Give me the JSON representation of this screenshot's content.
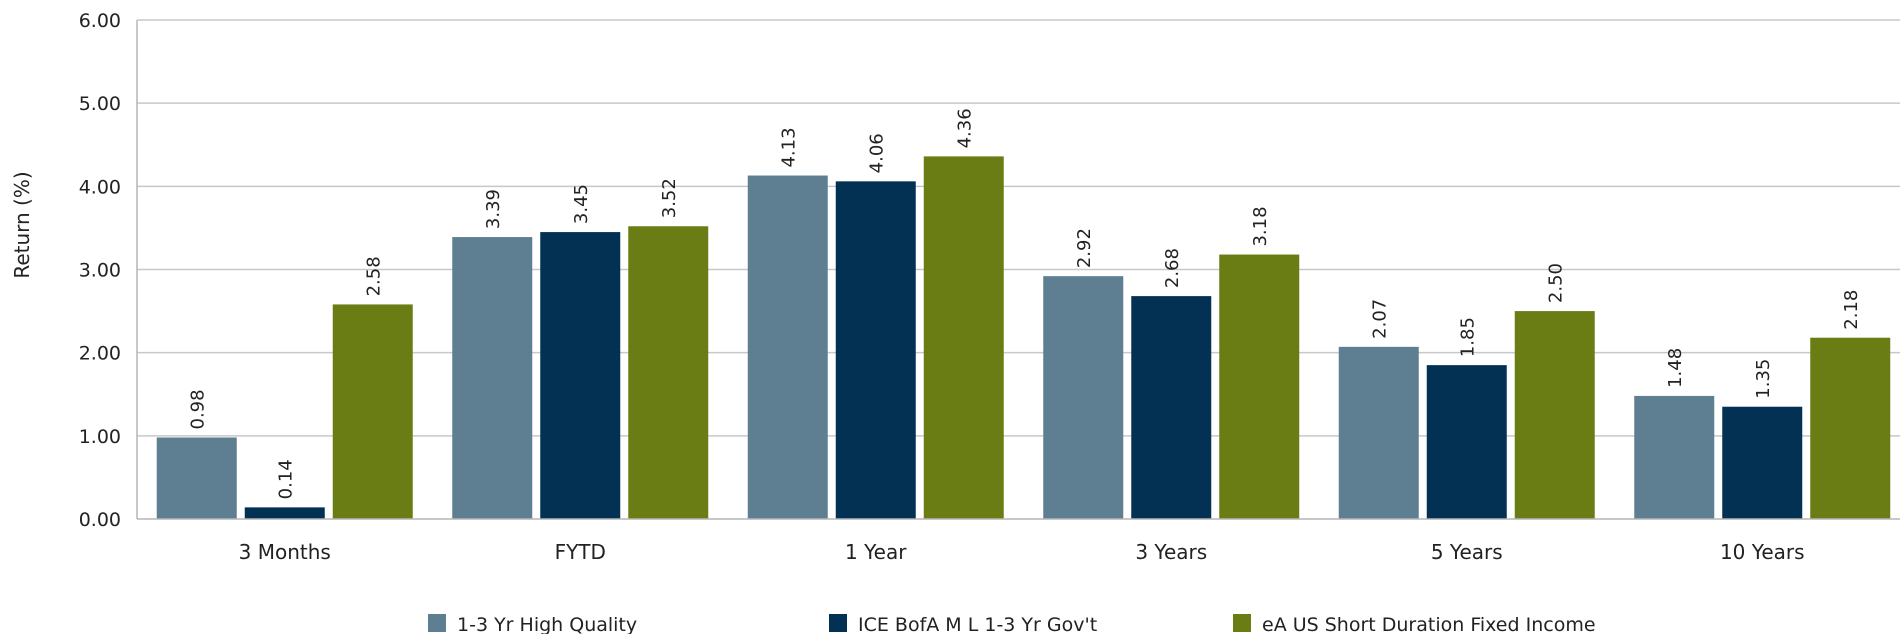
{
  "chart_data": {
    "type": "bar",
    "ylabel": "Return (%)",
    "ylim": [
      0,
      6
    ],
    "yticks": [
      "0.00",
      "1.00",
      "2.00",
      "3.00",
      "4.00",
      "5.00",
      "6.00"
    ],
    "grid": true,
    "legend_position": "bottom",
    "categories": [
      "3 Months",
      "FYTD",
      "1 Year",
      "3 Years",
      "5 Years",
      "10 Years"
    ],
    "series": [
      {
        "name": "1-3 Yr High Quality",
        "color": "#5e7f92",
        "values": [
          0.98,
          3.39,
          4.13,
          2.92,
          2.07,
          1.48
        ],
        "labels": [
          "0.98",
          "3.39",
          "4.13",
          "2.92",
          "2.07",
          "1.48"
        ]
      },
      {
        "name": "ICE BofA M L 1-3 Yr Gov't",
        "color": "#033154",
        "values": [
          0.14,
          3.45,
          4.06,
          2.68,
          1.85,
          1.35
        ],
        "labels": [
          "0.14",
          "3.45",
          "4.06",
          "2.68",
          "1.85",
          "1.35"
        ]
      },
      {
        "name": "eA US Short Duration Fixed Income",
        "color": "#6a7d15",
        "values": [
          2.58,
          3.52,
          4.36,
          3.18,
          2.5,
          2.18
        ],
        "labels": [
          "2.58",
          "3.52",
          "4.36",
          "3.18",
          "2.50",
          "2.18"
        ]
      }
    ]
  }
}
